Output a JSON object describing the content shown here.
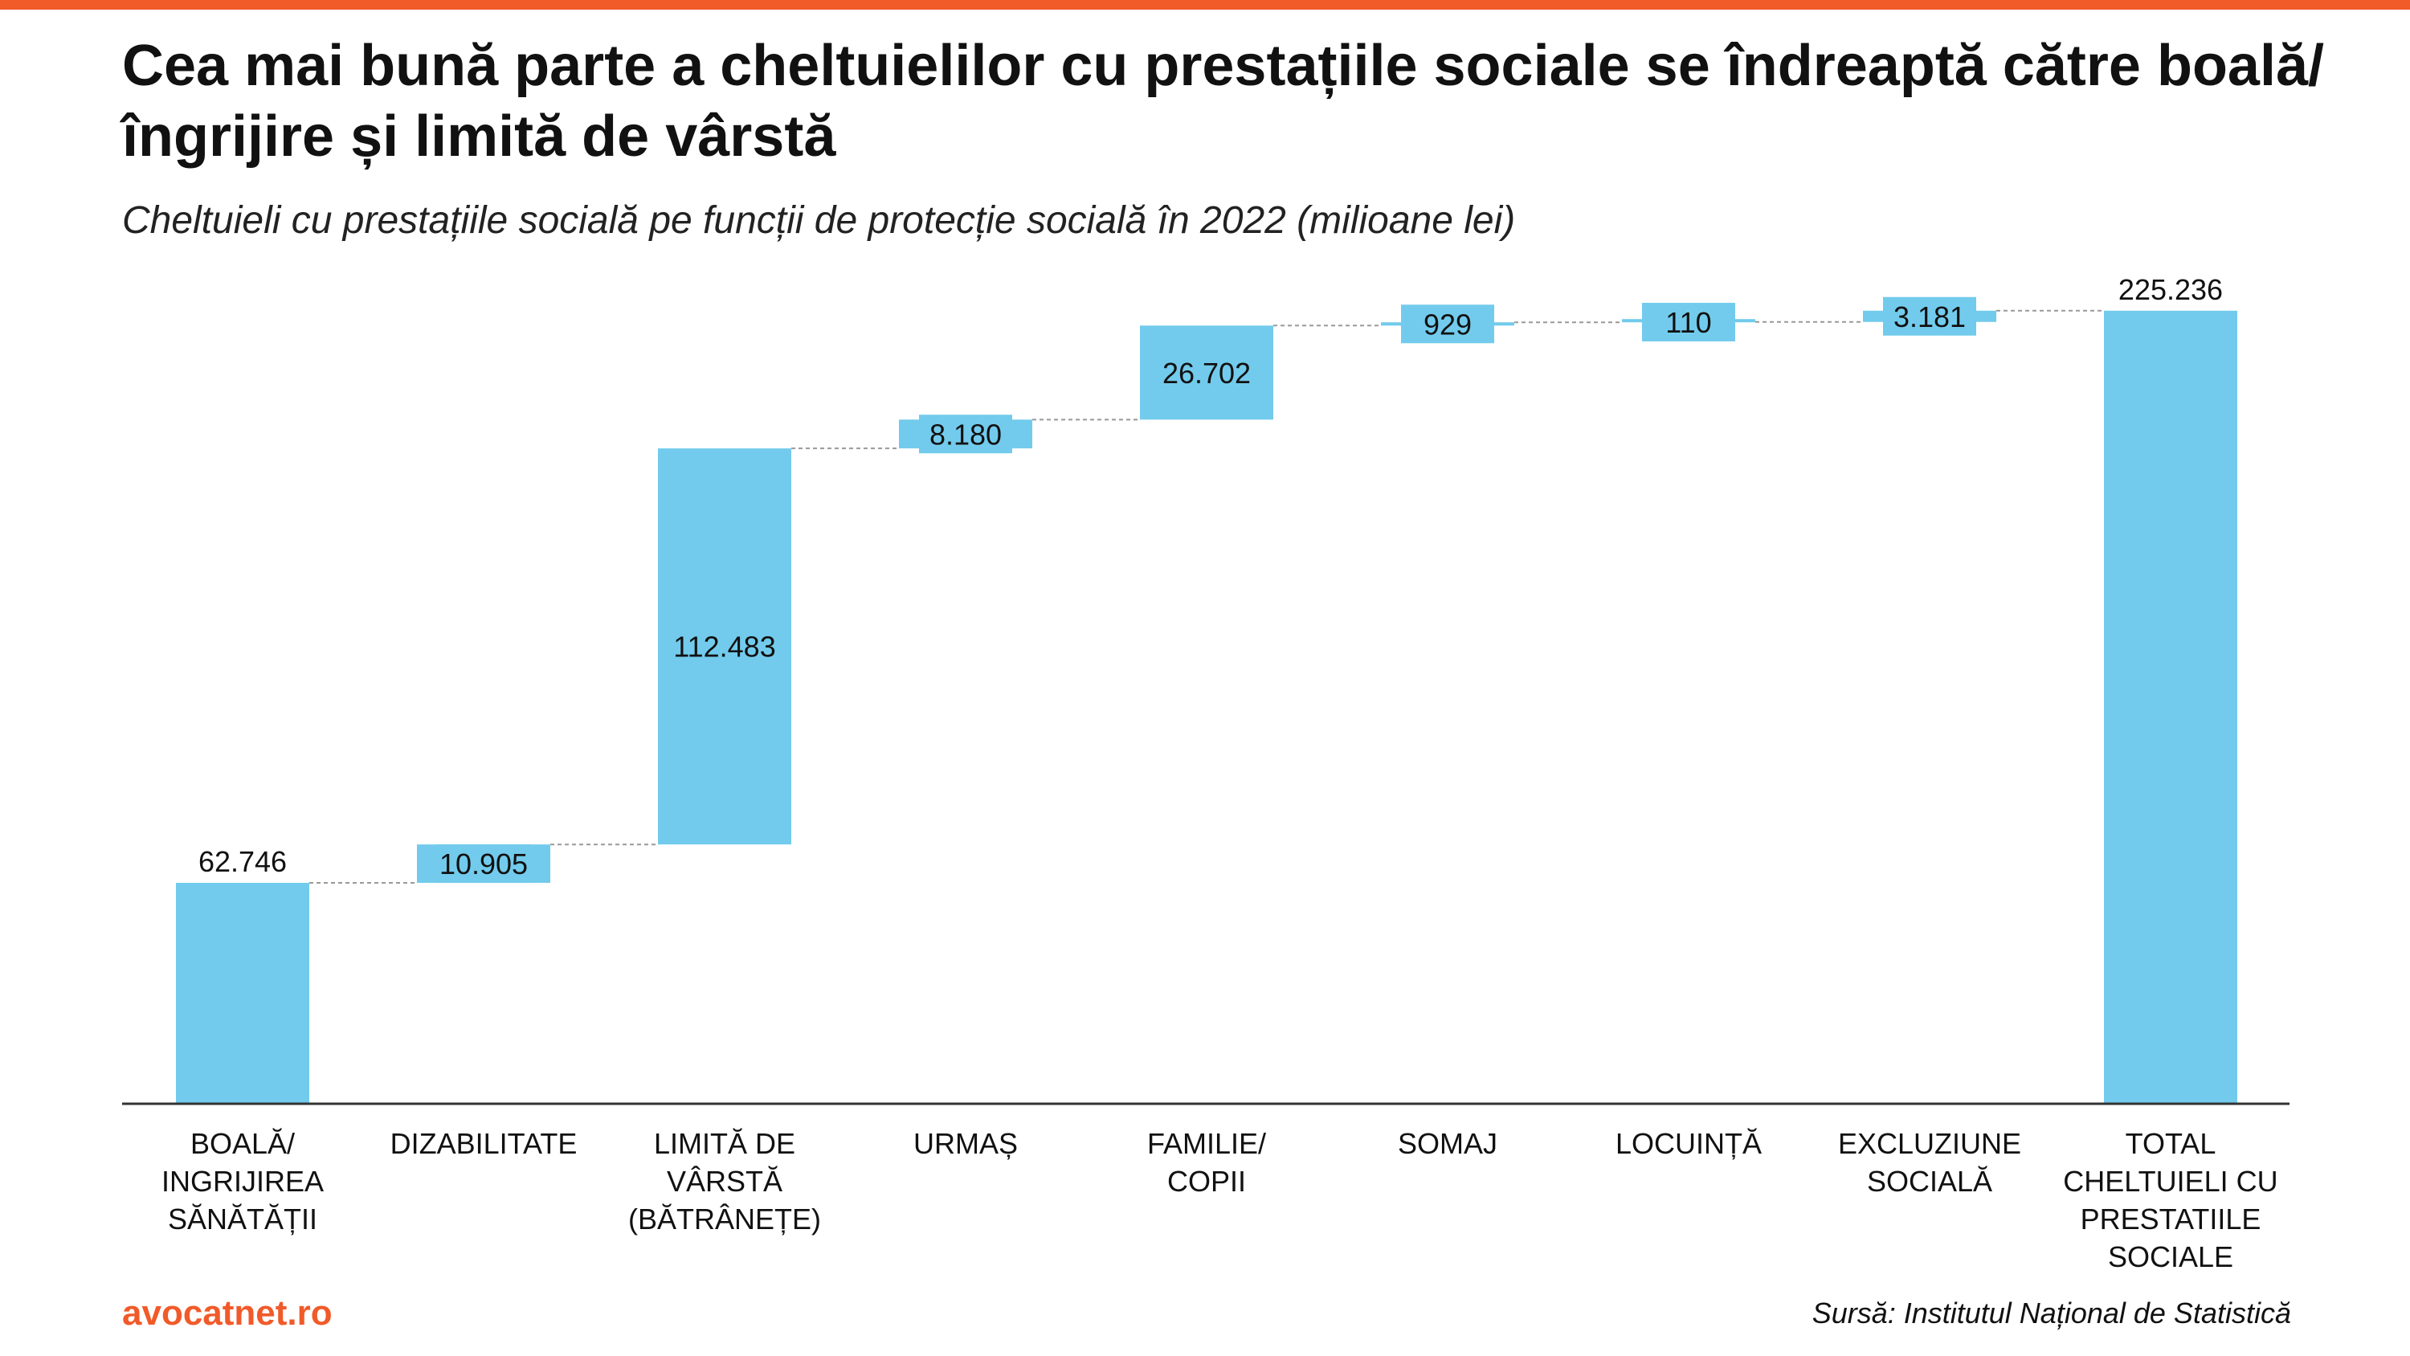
{
  "header": {
    "title": "Cea mai bună parte a cheltuielilor cu prestațiile sociale se îndreaptă către boală/îngrijire și limită de vârstă",
    "subtitle": "Cheltuieli cu prestațiile socială pe funcții de protecție socială în 2022 (milioane lei)"
  },
  "footer": {
    "brand": "avocatnet.ro",
    "source": "Sursă: Institutul Național de Statistică"
  },
  "colors": {
    "accent": "#F15A29",
    "bar": "#72CBEC",
    "connector": "#999999",
    "axis": "#333333"
  },
  "chart_data": {
    "type": "waterfall",
    "title": "Cheltuieli cu prestațiile socială pe funcții de protecție socială în 2022 (milioane lei)",
    "xlabel": "",
    "ylabel": "",
    "ylim": [
      0,
      235000
    ],
    "grid": false,
    "legend": "none",
    "categories": [
      [
        "BOALĂ/",
        "INGRIJIREA",
        "SĂNĂTĂȚII"
      ],
      [
        "DIZABILITATE"
      ],
      [
        "LIMITĂ DE",
        "VÂRSTĂ",
        "(BĂTRÂNEȚE)"
      ],
      [
        "URMAȘ"
      ],
      [
        "FAMILIE/",
        "COPII"
      ],
      [
        "SOMAJ"
      ],
      [
        "LOCUINȚĂ"
      ],
      [
        "EXCLUZIUNE",
        "SOCIALĂ"
      ],
      [
        "TOTAL",
        "CHELTUIELI CU",
        "PRESTATIILE",
        "SOCIALE"
      ]
    ],
    "values": [
      62746,
      10905,
      112483,
      8180,
      26702,
      929,
      110,
      3181,
      225236
    ],
    "labels": [
      "62.746",
      "10.905",
      "112.483",
      "8.180",
      "26.702",
      "929",
      "110",
      "3.181",
      "225.236"
    ],
    "is_total": [
      false,
      false,
      false,
      false,
      false,
      false,
      false,
      false,
      true
    ]
  }
}
